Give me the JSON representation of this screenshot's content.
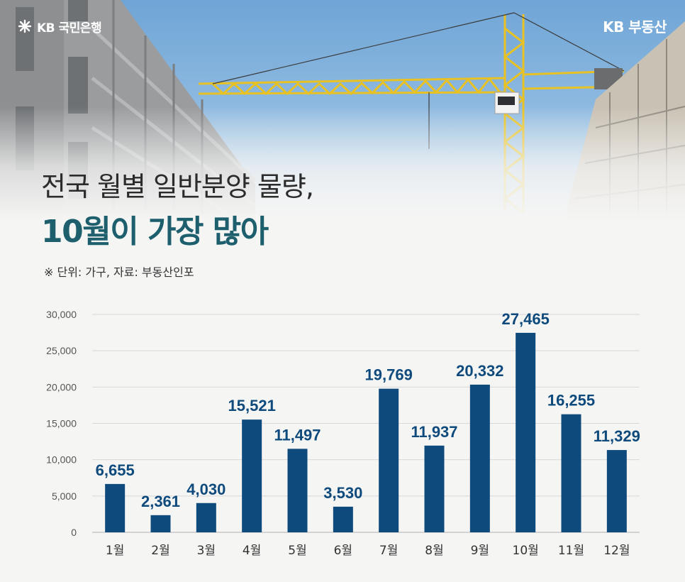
{
  "brand": {
    "left_text": "KB 국민은행",
    "right_text": "KB 부동산",
    "logo_icon": "kb-star-icon"
  },
  "headline": {
    "line1": "전국 월별 일반분양 물량,",
    "line2": "10월이 가장 많아"
  },
  "note": "※ 단위: 가구, 자료: 부동산인포",
  "colors": {
    "bar": "#0f4a7d",
    "value_label": "#0f4a7d",
    "headline_accent": "#1e5f6e",
    "grid": "#d8d8d8"
  },
  "chart_data": {
    "type": "bar",
    "title": "",
    "xlabel": "",
    "ylabel": "",
    "unit": "가구",
    "source": "부동산인포",
    "categories": [
      "1월",
      "2월",
      "3월",
      "4월",
      "5월",
      "6월",
      "7월",
      "8월",
      "9월",
      "10월",
      "11월",
      "12월"
    ],
    "values": [
      6655,
      2361,
      4030,
      15521,
      11497,
      3530,
      19769,
      11937,
      20332,
      27465,
      16255,
      11329
    ],
    "value_labels": [
      "6,655",
      "2,361",
      "4,030",
      "15,521",
      "11,497",
      "3,530",
      "19,769",
      "11,937",
      "20,332",
      "27,465",
      "16,255",
      "11,329"
    ],
    "y_ticks": [
      "0",
      "5,000",
      "10,000",
      "15,000",
      "20,000",
      "25,000",
      "30,000"
    ],
    "ylim": [
      0,
      30000
    ],
    "grid": true,
    "legend": "none"
  }
}
